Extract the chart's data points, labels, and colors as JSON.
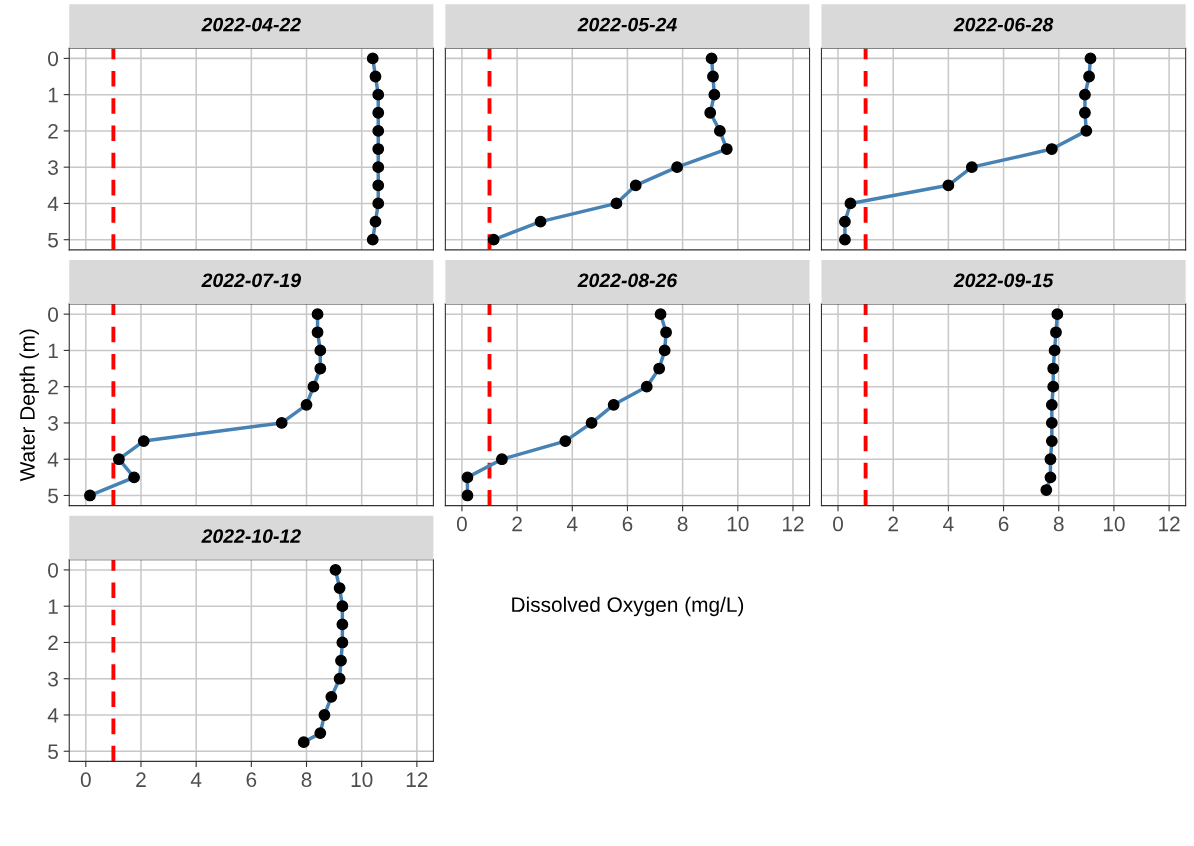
{
  "chart_data": [
    {
      "type": "line",
      "title": "2022-04-22",
      "xlim": [
        -0.6,
        12.6
      ],
      "ylim": [
        5.28,
        -0.28
      ],
      "xticks": [
        0,
        2,
        4,
        6,
        8,
        10,
        12
      ],
      "yticks": [
        0,
        1,
        2,
        3,
        4,
        5
      ],
      "grid": true,
      "marker": "circle",
      "line_style": "solid",
      "tick_labels": "y",
      "series": [
        {
          "color": "#4682b4",
          "x": [
            10.4,
            10.5,
            10.6,
            10.6,
            10.6,
            10.6,
            10.6,
            10.6,
            10.6,
            10.5,
            10.4
          ],
          "values": [
            0,
            0.5,
            1,
            1.5,
            2,
            2.5,
            3,
            3.5,
            4,
            4.5,
            5
          ]
        }
      ],
      "ref_lines": [
        {
          "axis": "x",
          "value": 1,
          "color": "#ff0000",
          "line_style": "dashed"
        }
      ]
    },
    {
      "type": "line",
      "title": "2022-05-24",
      "xlim": [
        -0.6,
        12.6
      ],
      "ylim": [
        5.28,
        -0.28
      ],
      "xticks": [
        0,
        2,
        4,
        6,
        8,
        10,
        12
      ],
      "yticks": [
        0,
        1,
        2,
        3,
        4,
        5
      ],
      "grid": true,
      "marker": "circle",
      "line_style": "solid",
      "tick_labels": false,
      "series": [
        {
          "color": "#4682b4",
          "x": [
            9.05,
            9.1,
            9.15,
            9.0,
            9.35,
            9.6,
            7.8,
            6.3,
            5.6,
            2.85,
            1.15
          ],
          "values": [
            0,
            0.5,
            1,
            1.5,
            2,
            2.5,
            3,
            3.5,
            4,
            4.5,
            5
          ]
        }
      ],
      "ref_lines": [
        {
          "axis": "x",
          "value": 1,
          "color": "#ff0000",
          "line_style": "dashed"
        }
      ]
    },
    {
      "type": "line",
      "title": "2022-06-28",
      "xlim": [
        -0.6,
        12.6
      ],
      "ylim": [
        5.28,
        -0.28
      ],
      "xticks": [
        0,
        2,
        4,
        6,
        8,
        10,
        12
      ],
      "yticks": [
        0,
        1,
        2,
        3,
        4,
        5
      ],
      "grid": true,
      "marker": "circle",
      "line_style": "solid",
      "tick_labels": false,
      "series": [
        {
          "color": "#4682b4",
          "x": [
            9.15,
            9.1,
            8.95,
            8.95,
            9.0,
            7.75,
            4.85,
            4.0,
            0.45,
            0.25,
            0.25
          ],
          "values": [
            0,
            0.5,
            1,
            1.5,
            2,
            2.5,
            3,
            3.5,
            4,
            4.5,
            5
          ]
        }
      ],
      "ref_lines": [
        {
          "axis": "x",
          "value": 1,
          "color": "#ff0000",
          "line_style": "dashed"
        }
      ]
    },
    {
      "type": "line",
      "title": "2022-07-19",
      "ylabel": "Water Depth (m)",
      "xlim": [
        -0.6,
        12.6
      ],
      "ylim": [
        5.28,
        -0.28
      ],
      "xticks": [
        0,
        2,
        4,
        6,
        8,
        10,
        12
      ],
      "yticks": [
        0,
        1,
        2,
        3,
        4,
        5
      ],
      "grid": true,
      "marker": "circle",
      "line_style": "solid",
      "tick_labels": "y",
      "series": [
        {
          "color": "#4682b4",
          "x": [
            8.4,
            8.4,
            8.5,
            8.5,
            8.25,
            8.0,
            7.1,
            2.1,
            1.2,
            1.75,
            0.15
          ],
          "values": [
            0,
            0.5,
            1,
            1.5,
            2,
            2.5,
            3,
            3.5,
            4,
            4.5,
            5
          ]
        }
      ],
      "ref_lines": [
        {
          "axis": "x",
          "value": 1,
          "color": "#ff0000",
          "line_style": "dashed"
        }
      ]
    },
    {
      "type": "line",
      "title": "2022-08-26",
      "xlabel": "Dissolved Oxygen (mg/L)",
      "xlim": [
        -0.6,
        12.6
      ],
      "ylim": [
        5.28,
        -0.28
      ],
      "xticks": [
        0,
        2,
        4,
        6,
        8,
        10,
        12
      ],
      "yticks": [
        0,
        1,
        2,
        3,
        4,
        5
      ],
      "grid": true,
      "marker": "circle",
      "line_style": "solid",
      "tick_labels": "x",
      "series": [
        {
          "color": "#4682b4",
          "x": [
            7.2,
            7.4,
            7.35,
            7.15,
            6.7,
            5.5,
            4.7,
            3.75,
            1.45,
            0.2,
            0.2
          ],
          "values": [
            0,
            0.5,
            1,
            1.5,
            2,
            2.5,
            3,
            3.5,
            4,
            4.5,
            5
          ]
        }
      ],
      "ref_lines": [
        {
          "axis": "x",
          "value": 1,
          "color": "#ff0000",
          "line_style": "dashed"
        }
      ]
    },
    {
      "type": "line",
      "title": "2022-09-15",
      "xlim": [
        -0.6,
        12.6
      ],
      "ylim": [
        5.28,
        -0.28
      ],
      "xticks": [
        0,
        2,
        4,
        6,
        8,
        10,
        12
      ],
      "yticks": [
        0,
        1,
        2,
        3,
        4,
        5
      ],
      "grid": true,
      "marker": "circle",
      "line_style": "solid",
      "tick_labels": "x",
      "series": [
        {
          "color": "#4682b4",
          "x": [
            7.95,
            7.9,
            7.85,
            7.8,
            7.8,
            7.75,
            7.75,
            7.75,
            7.7,
            7.7,
            7.55
          ],
          "values": [
            0,
            0.5,
            1,
            1.5,
            2,
            2.5,
            3,
            3.5,
            4,
            4.5,
            4.85
          ]
        }
      ],
      "ref_lines": [
        {
          "axis": "x",
          "value": 1,
          "color": "#ff0000",
          "line_style": "dashed"
        }
      ]
    },
    {
      "type": "line",
      "title": "2022-10-12",
      "xlim": [
        -0.6,
        12.6
      ],
      "ylim": [
        5.28,
        -0.28
      ],
      "xticks": [
        0,
        2,
        4,
        6,
        8,
        10,
        12
      ],
      "yticks": [
        0,
        1,
        2,
        3,
        4,
        5
      ],
      "grid": true,
      "marker": "circle",
      "line_style": "solid",
      "series": [
        {
          "color": "#4682b4",
          "x": [
            9.05,
            9.2,
            9.3,
            9.3,
            9.3,
            9.25,
            9.2,
            8.9,
            8.65,
            8.5,
            7.9
          ],
          "values": [
            0,
            0.5,
            1,
            1.5,
            2,
            2.5,
            3,
            3.5,
            4,
            4.5,
            4.75
          ]
        }
      ],
      "ref_lines": [
        {
          "axis": "x",
          "value": 1,
          "color": "#ff0000",
          "line_style": "dashed"
        }
      ]
    }
  ]
}
